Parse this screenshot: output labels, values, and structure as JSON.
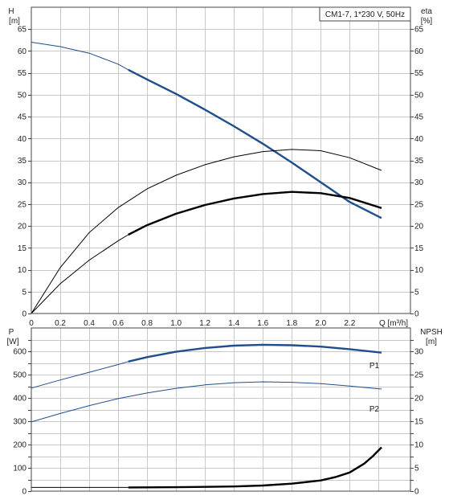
{
  "legend_box": "CM1-7, 1*230 V, 50Hz",
  "colors": {
    "head": "#1f4e8c",
    "efficiency": "#000000",
    "power": "#1f4e8c",
    "npsh": "#000000",
    "grid": "#c9c9c9"
  },
  "chart_data": [
    {
      "type": "line",
      "panel": "top",
      "xlabel": "Q [m³/h]",
      "ylabel_left": [
        "H",
        "[m]"
      ],
      "ylabel_right": [
        "eta",
        "[%]"
      ],
      "xlim": [
        0,
        2.62
      ],
      "ylim_left": [
        0,
        70
      ],
      "ylim_right": [
        0,
        70
      ],
      "x_ticks": [
        "0",
        "0.2",
        "0.4",
        "0.6",
        "0.8",
        "1.0",
        "1.2",
        "1.4",
        "1.6",
        "1.8",
        "2.0",
        "2.2"
      ],
      "y_ticks_left": [
        "0",
        "5",
        "10",
        "15",
        "20",
        "25",
        "30",
        "35",
        "40",
        "45",
        "50",
        "55",
        "60",
        "65"
      ],
      "y_ticks_right": [
        "0",
        "5",
        "10",
        "15",
        "20",
        "25",
        "30",
        "35",
        "40",
        "45",
        "50",
        "55",
        "60",
        "65"
      ],
      "grid": true,
      "series": [
        {
          "axis": "left",
          "color": "#1f4e8c",
          "bold_from": 0.67,
          "x": [
            0,
            0.2,
            0.4,
            0.6,
            0.67,
            0.8,
            1.0,
            1.2,
            1.4,
            1.6,
            1.8,
            2.0,
            2.2,
            2.42
          ],
          "y": [
            62,
            61,
            59.5,
            57,
            55.7,
            53.5,
            50.2,
            46.6,
            42.8,
            38.8,
            34.5,
            30,
            25.5,
            21.8
          ]
        },
        {
          "axis": "right",
          "color": "#000000",
          "bold_from": 99,
          "x": [
            0,
            0.2,
            0.4,
            0.6,
            0.8,
            1.0,
            1.2,
            1.4,
            1.6,
            1.8,
            2.0,
            2.2,
            2.42
          ],
          "y": [
            0,
            10.5,
            18.5,
            24.2,
            28.5,
            31.6,
            34.0,
            35.8,
            37.0,
            37.5,
            37.2,
            35.6,
            32.7
          ]
        },
        {
          "axis": "right",
          "color": "#000000",
          "bold_from": 0.67,
          "x": [
            0,
            0.2,
            0.4,
            0.6,
            0.67,
            0.8,
            1.0,
            1.2,
            1.4,
            1.6,
            1.8,
            2.0,
            2.2,
            2.42
          ],
          "y": [
            0,
            6.8,
            12.2,
            16.6,
            18.0,
            20.2,
            22.8,
            24.8,
            26.3,
            27.3,
            27.8,
            27.5,
            26.4,
            24.1
          ]
        }
      ]
    },
    {
      "type": "line",
      "panel": "bottom",
      "ylabel_left": [
        "P",
        "[W]"
      ],
      "ylabel_right": [
        "NPSH",
        "[m]"
      ],
      "xlim": [
        0,
        2.62
      ],
      "ylim_left": [
        0,
        700
      ],
      "ylim_right": [
        0,
        35
      ],
      "y_ticks_left": [
        "0",
        "100",
        "200",
        "300",
        "400",
        "500",
        "600"
      ],
      "y_ticks_right": [
        "0",
        "5",
        "10",
        "15",
        "20",
        "25",
        "30"
      ],
      "grid": true,
      "series": [
        {
          "name": "P1",
          "axis": "left",
          "color": "#1f4e8c",
          "bold_from": 0.67,
          "x": [
            0,
            0.2,
            0.4,
            0.6,
            0.67,
            0.8,
            1.0,
            1.2,
            1.4,
            1.6,
            1.8,
            2.0,
            2.2,
            2.42
          ],
          "y": [
            442,
            477,
            510,
            543,
            556,
            575,
            598,
            614,
            624,
            628,
            626,
            620,
            609,
            594
          ]
        },
        {
          "name": "P2",
          "axis": "left",
          "color": "#1f4e8c",
          "bold_from": 99,
          "x": [
            0,
            0.2,
            0.4,
            0.6,
            0.8,
            1.0,
            1.2,
            1.4,
            1.6,
            1.8,
            2.0,
            2.2,
            2.42
          ],
          "y": [
            297,
            333,
            367,
            397,
            421,
            441,
            456,
            465,
            469,
            467,
            461,
            451,
            438
          ]
        },
        {
          "axis": "right",
          "color": "#000000",
          "bold_from": 0.67,
          "x": [
            0,
            0.4,
            0.67,
            1.0,
            1.4,
            1.6,
            1.8,
            2.0,
            2.1,
            2.2,
            2.3,
            2.36,
            2.42
          ],
          "y": [
            0.8,
            0.8,
            0.8,
            0.85,
            1.0,
            1.2,
            1.6,
            2.3,
            3.0,
            4.0,
            5.9,
            7.5,
            9.4
          ]
        }
      ]
    }
  ]
}
